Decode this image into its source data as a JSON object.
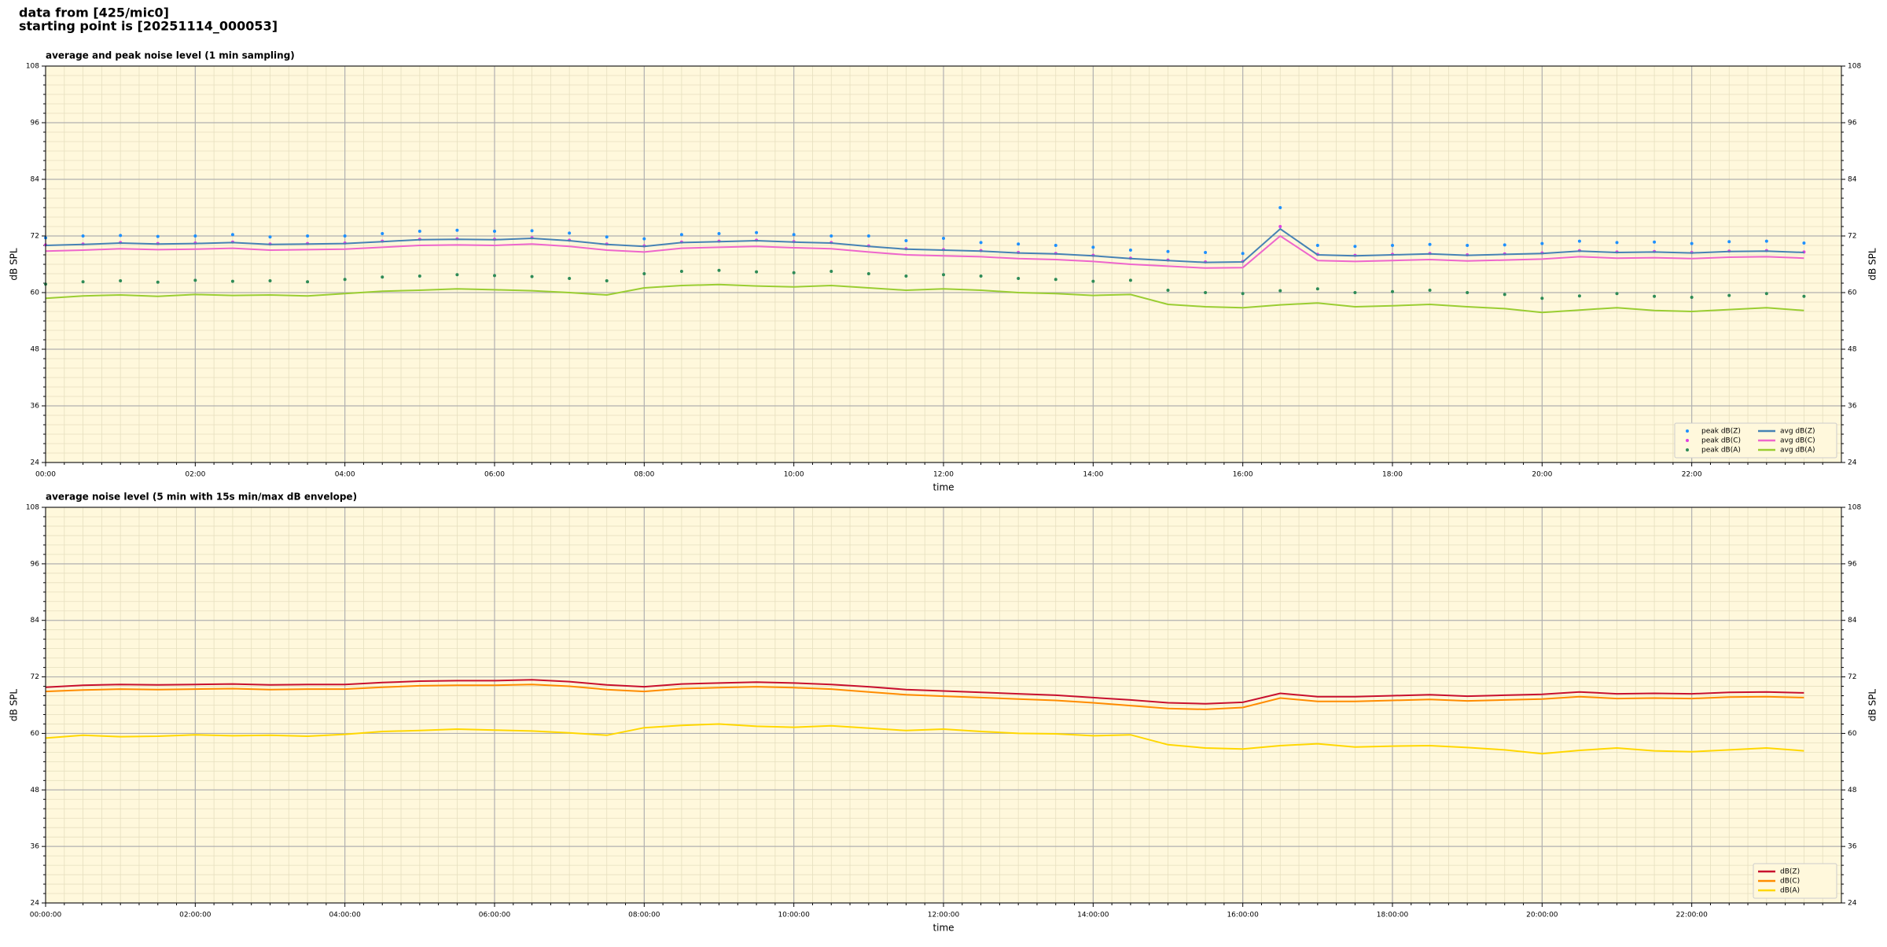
{
  "header": {
    "lines": [
      "data from [425/mic0]",
      "starting point is [20251114_000053]"
    ]
  },
  "chart_data": [
    {
      "type": "line",
      "title": "average and peak noise level (1 min sampling)",
      "xlabel": "time",
      "ylabel": "dB SPL",
      "xlim": [
        0,
        24
      ],
      "ylim": [
        24,
        108
      ],
      "xticks": [
        {
          "value": 0,
          "label": "00:00"
        },
        {
          "value": 2,
          "label": "02:00"
        },
        {
          "value": 4,
          "label": "04:00"
        },
        {
          "value": 6,
          "label": "06:00"
        },
        {
          "value": 8,
          "label": "08:00"
        },
        {
          "value": 10,
          "label": "10:00"
        },
        {
          "value": 12,
          "label": "12:00"
        },
        {
          "value": 14,
          "label": "14:00"
        },
        {
          "value": 16,
          "label": "16:00"
        },
        {
          "value": 18,
          "label": "18:00"
        },
        {
          "value": 20,
          "label": "20:00"
        },
        {
          "value": 22,
          "label": "22:00"
        }
      ],
      "yticks": [
        24,
        36,
        48,
        60,
        72,
        84,
        96,
        108
      ],
      "grid": true,
      "minor_grid": true,
      "legend": "lower right",
      "background": "#fff8dc",
      "x": [
        0,
        0.5,
        1,
        1.5,
        2,
        2.5,
        3,
        3.5,
        4,
        4.5,
        5,
        5.5,
        6,
        6.5,
        7,
        7.5,
        8,
        8.5,
        9,
        9.5,
        10,
        10.5,
        11,
        11.5,
        12,
        12.5,
        13,
        13.5,
        14,
        14.5,
        15,
        15.5,
        16,
        16.5,
        17,
        17.5,
        18,
        18.5,
        19,
        19.5,
        20,
        20.5,
        21,
        21.5,
        22,
        22.5,
        23,
        23.5
      ],
      "series": [
        {
          "name": "peak dB(Z)",
          "type": "scatter",
          "color": "#1e90ff",
          "values": [
            71.6,
            72,
            72.1,
            71.9,
            72,
            72.3,
            71.8,
            72,
            72,
            72.5,
            73,
            73.2,
            73,
            73.1,
            72.6,
            71.8,
            71.4,
            72.3,
            72.5,
            72.7,
            72.3,
            72,
            72,
            71,
            71.5,
            70.6,
            70.3,
            70,
            69.6,
            69,
            68.7,
            68.5,
            68.3,
            78,
            70,
            69.8,
            70,
            70.2,
            70,
            70.1,
            70.4,
            70.9,
            70.6,
            70.7,
            70.4,
            70.8,
            70.9,
            70.5
          ]
        },
        {
          "name": "peak dB(C)",
          "type": "scatter",
          "color": "#e040e0",
          "values": [
            70.1,
            70.3,
            70.6,
            70.4,
            70.5,
            70.7,
            70.3,
            70.4,
            70.5,
            70.9,
            71.3,
            71.4,
            71.3,
            71.6,
            71.1,
            70.3,
            69.9,
            70.7,
            70.9,
            71.1,
            70.8,
            70.6,
            69.9,
            69.3,
            69.1,
            68.9,
            68.5,
            68.3,
            67.9,
            67.3,
            66.9,
            66.5,
            66.6,
            74,
            68.1,
            67.9,
            68.1,
            68.3,
            68,
            68.2,
            68.4,
            68.9,
            68.6,
            68.7,
            68.5,
            68.8,
            68.9,
            68.6
          ]
        },
        {
          "name": "peak dB(A)",
          "type": "scatter",
          "color": "#2e8b57",
          "values": [
            61.8,
            62.3,
            62.5,
            62.2,
            62.6,
            62.4,
            62.5,
            62.3,
            62.8,
            63.3,
            63.5,
            63.8,
            63.6,
            63.4,
            63,
            62.5,
            64,
            64.5,
            64.7,
            64.4,
            64.2,
            64.5,
            64,
            63.5,
            63.8,
            63.5,
            63,
            62.8,
            62.4,
            62.6,
            60.5,
            60,
            59.8,
            60.4,
            60.8,
            60,
            60.2,
            60.5,
            60,
            59.6,
            58.8,
            59.3,
            59.8,
            59.2,
            59,
            59.4,
            59.8,
            59.2
          ]
        },
        {
          "name": "avg dB(Z)",
          "type": "line",
          "color": "#4682b4",
          "values": [
            70,
            70.2,
            70.5,
            70.3,
            70.4,
            70.6,
            70.2,
            70.3,
            70.4,
            70.8,
            71.2,
            71.3,
            71.2,
            71.5,
            71,
            70.2,
            69.8,
            70.6,
            70.8,
            71,
            70.7,
            70.5,
            69.8,
            69.2,
            69,
            68.8,
            68.4,
            68.2,
            67.8,
            67.2,
            66.8,
            66.4,
            66.5,
            73.5,
            68,
            67.8,
            68,
            68.2,
            67.9,
            68.1,
            68.3,
            68.8,
            68.5,
            68.6,
            68.4,
            68.7,
            68.8,
            68.5
          ]
        },
        {
          "name": "avg dB(C)",
          "type": "line",
          "color": "#ee66cc",
          "values": [
            68.8,
            69,
            69.3,
            69.1,
            69.2,
            69.4,
            69,
            69.1,
            69.2,
            69.6,
            70,
            70.1,
            70,
            70.3,
            69.8,
            69,
            68.6,
            69.4,
            69.6,
            69.8,
            69.5,
            69.3,
            68.6,
            68,
            67.8,
            67.6,
            67.2,
            67,
            66.6,
            66,
            65.6,
            65.2,
            65.3,
            72,
            66.8,
            66.6,
            66.8,
            67,
            66.7,
            66.9,
            67.1,
            67.6,
            67.3,
            67.4,
            67.2,
            67.5,
            67.6,
            67.3
          ]
        },
        {
          "name": "avg dB(A)",
          "type": "line",
          "color": "#9acd32",
          "values": [
            58.8,
            59.3,
            59.5,
            59.2,
            59.6,
            59.4,
            59.5,
            59.3,
            59.8,
            60.3,
            60.5,
            60.8,
            60.6,
            60.4,
            60,
            59.5,
            61,
            61.5,
            61.7,
            61.4,
            61.2,
            61.5,
            61,
            60.5,
            60.8,
            60.5,
            60,
            59.8,
            59.4,
            59.6,
            57.5,
            57,
            56.8,
            57.4,
            57.8,
            57,
            57.2,
            57.5,
            57,
            56.6,
            55.8,
            56.3,
            56.8,
            56.2,
            56,
            56.4,
            56.8,
            56.2
          ]
        }
      ]
    },
    {
      "type": "line",
      "title": "average noise level (5 min with 15s min/max dB envelope)",
      "xlabel": "time",
      "ylabel": "dB SPL",
      "xlim": [
        0,
        24
      ],
      "ylim": [
        24,
        108
      ],
      "xticks": [
        {
          "value": 0,
          "label": "00:00:00"
        },
        {
          "value": 2,
          "label": "02:00:00"
        },
        {
          "value": 4,
          "label": "04:00:00"
        },
        {
          "value": 6,
          "label": "06:00:00"
        },
        {
          "value": 8,
          "label": "08:00:00"
        },
        {
          "value": 10,
          "label": "10:00:00"
        },
        {
          "value": 12,
          "label": "12:00:00"
        },
        {
          "value": 14,
          "label": "14:00:00"
        },
        {
          "value": 16,
          "label": "16:00:00"
        },
        {
          "value": 18,
          "label": "18:00:00"
        },
        {
          "value": 20,
          "label": "20:00:00"
        },
        {
          "value": 22,
          "label": "22:00:00"
        }
      ],
      "yticks": [
        24,
        36,
        48,
        60,
        72,
        84,
        96,
        108
      ],
      "grid": true,
      "minor_grid": true,
      "legend": "lower right",
      "background": "#fff8dc",
      "x": [
        0,
        0.5,
        1,
        1.5,
        2,
        2.5,
        3,
        3.5,
        4,
        4.5,
        5,
        5.5,
        6,
        6.5,
        7,
        7.5,
        8,
        8.5,
        9,
        9.5,
        10,
        10.5,
        11,
        11.5,
        12,
        12.5,
        13,
        13.5,
        14,
        14.5,
        15,
        15.5,
        16,
        16.5,
        17,
        17.5,
        18,
        18.5,
        19,
        19.5,
        20,
        20.5,
        21,
        21.5,
        22,
        22.5,
        23,
        23.5
      ],
      "series": [
        {
          "name": "dB(Z)",
          "type": "line",
          "color": "#c8102e",
          "values": [
            69.8,
            70.2,
            70.4,
            70.3,
            70.4,
            70.5,
            70.3,
            70.4,
            70.4,
            70.8,
            71.1,
            71.2,
            71.2,
            71.4,
            71,
            70.3,
            69.9,
            70.5,
            70.7,
            70.9,
            70.7,
            70.4,
            69.9,
            69.3,
            69,
            68.7,
            68.4,
            68.1,
            67.6,
            67.1,
            66.5,
            66.3,
            66.6,
            68.5,
            67.8,
            67.8,
            68,
            68.2,
            67.9,
            68.1,
            68.3,
            68.8,
            68.4,
            68.5,
            68.4,
            68.7,
            68.8,
            68.6
          ]
        },
        {
          "name": "dB(C)",
          "type": "line",
          "color": "#ff8c00",
          "values": [
            68.9,
            69.2,
            69.4,
            69.3,
            69.4,
            69.5,
            69.3,
            69.4,
            69.4,
            69.8,
            70.1,
            70.2,
            70.2,
            70.4,
            70,
            69.3,
            68.9,
            69.5,
            69.7,
            69.9,
            69.7,
            69.4,
            68.8,
            68.2,
            67.9,
            67.6,
            67.3,
            67,
            66.5,
            65.9,
            65.3,
            65.1,
            65.5,
            67.5,
            66.8,
            66.8,
            67,
            67.2,
            66.9,
            67.1,
            67.3,
            67.8,
            67.4,
            67.5,
            67.4,
            67.7,
            67.8,
            67.6
          ]
        },
        {
          "name": "dB(A)",
          "type": "line",
          "color": "#ffd700",
          "values": [
            59,
            59.6,
            59.3,
            59.4,
            59.7,
            59.5,
            59.6,
            59.4,
            59.8,
            60.4,
            60.6,
            60.9,
            60.7,
            60.5,
            60.1,
            59.6,
            61.2,
            61.7,
            62,
            61.5,
            61.3,
            61.6,
            61.1,
            60.6,
            60.9,
            60.4,
            60,
            59.9,
            59.5,
            59.7,
            57.6,
            56.9,
            56.7,
            57.4,
            57.8,
            57.1,
            57.3,
            57.4,
            57,
            56.5,
            55.7,
            56.4,
            56.9,
            56.3,
            56.1,
            56.5,
            56.9,
            56.3
          ]
        }
      ]
    }
  ]
}
